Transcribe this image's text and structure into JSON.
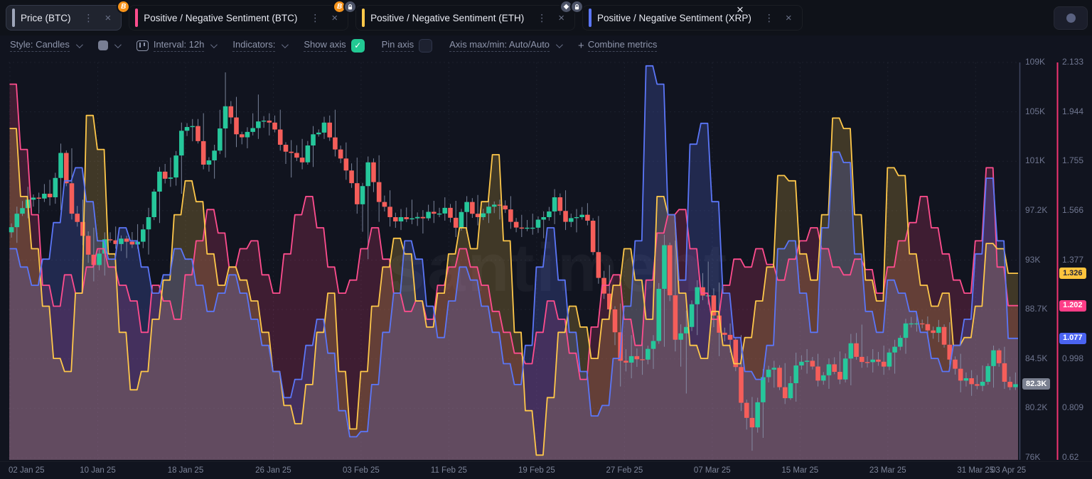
{
  "app": {
    "watermark": "santiment"
  },
  "tabbar": {
    "kebab_icon": "⋮",
    "close_icon": "×",
    "dismiss_icon": "×",
    "tabs": [
      {
        "label": "Price (BTC)",
        "series_color": "#9fa6ba",
        "active": true,
        "badges": [
          "btc"
        ]
      },
      {
        "label": "Positive / Negative Sentiment (BTC)",
        "series_color": "#ff4d8e",
        "active": false,
        "badges": [
          "btc",
          "lock"
        ]
      },
      {
        "label": "Positive / Negative Sentiment (ETH)",
        "series_color": "#ffc84a",
        "active": false,
        "badges": [
          "eth",
          "lock"
        ]
      },
      {
        "label": "Positive / Negative Sentiment (XRP)",
        "series_color": "#5b76f8",
        "active": false,
        "badges": []
      }
    ]
  },
  "toolbar": {
    "style_label": "Style: Candles",
    "interval_label": "Interval: 12h",
    "indicators_label": "Indicators:",
    "show_axis_label": "Show axis",
    "show_axis_checked": true,
    "pin_axis_label": "Pin axis",
    "pin_axis_checked": false,
    "axis_maxmin_label": "Axis max/min: Auto/Auto",
    "plus_icon": "+",
    "combine_metrics_label": "Combine metrics",
    "check_icon": "✓"
  },
  "chart_data": {
    "type": "candlestick_with_step_lines",
    "interval": "12h",
    "x_tick_labels": [
      "02 Jan 25",
      "10 Jan 25",
      "18 Jan 25",
      "26 Jan 25",
      "03 Feb 25",
      "11 Feb 25",
      "19 Feb 25",
      "27 Feb 25",
      "07 Mar 25",
      "15 Mar 25",
      "23 Mar 25",
      "31 Mar 25",
      "03 Apr 25"
    ],
    "x_tick_days": [
      0,
      8,
      16,
      24,
      32,
      40,
      48,
      56,
      64,
      72,
      80,
      88,
      91
    ],
    "price_axis": {
      "labels": [
        "109K",
        "105K",
        "101K",
        "97.2K",
        "93K",
        "88.7K",
        "84.5K",
        "80.2K",
        "76K"
      ],
      "min": 76,
      "max": 109.85,
      "line_color": "#3f4660",
      "last_badge": {
        "label": "82.3K",
        "value": 82.3,
        "bg": "#7a8090",
        "text": "#ffffff"
      }
    },
    "sentiment_axis": {
      "labels": [
        "2.133",
        "1.944",
        "1.755",
        "1.566",
        "1.377",
        "1.187",
        "0.998",
        "0.809",
        "0.62"
      ],
      "min": 0.62,
      "max": 2.133,
      "line_color": "#f23372"
    },
    "candles": {
      "name": "Price (BTC)",
      "up_color": "#26c79b",
      "down_color": "#f55e5a",
      "wick_color": "#8b95ae",
      "daily_ohlc": [
        [
          95.3,
          97.5,
          94.4,
          96.9
        ],
        [
          96.9,
          99.2,
          96.5,
          98.1
        ],
        [
          98.1,
          98.7,
          96.9,
          98.2
        ],
        [
          98.2,
          99.8,
          97.6,
          98.3
        ],
        [
          98.3,
          102.9,
          97.2,
          102.1
        ],
        [
          102.1,
          102.5,
          96.4,
          96.9
        ],
        [
          96.9,
          98.1,
          94.2,
          95.0
        ],
        [
          95.0,
          95.7,
          91.1,
          92.5
        ],
        [
          92.5,
          95.3,
          91.6,
          94.7
        ],
        [
          94.7,
          95.8,
          93.9,
          94.3
        ],
        [
          94.3,
          95.0,
          93.1,
          94.5
        ],
        [
          94.5,
          96.0,
          93.9,
          94.5
        ],
        [
          94.5,
          97.4,
          93.4,
          96.6
        ],
        [
          96.6,
          100.9,
          96.1,
          100.5
        ],
        [
          100.5,
          101.7,
          99.2,
          100.0
        ],
        [
          100.0,
          104.7,
          98.6,
          104.0
        ],
        [
          104.0,
          105.0,
          103.1,
          104.4
        ],
        [
          104.4,
          105.5,
          100.7,
          101.1
        ],
        [
          101.1,
          102.8,
          99.9,
          102.3
        ],
        [
          102.3,
          109.0,
          101.7,
          106.1
        ],
        [
          106.1,
          106.9,
          102.6,
          103.7
        ],
        [
          103.7,
          104.3,
          102.5,
          103.9
        ],
        [
          103.9,
          107.1,
          103.3,
          104.8
        ],
        [
          104.8,
          105.5,
          103.6,
          104.7
        ],
        [
          104.7,
          105.8,
          102.3,
          102.8
        ],
        [
          102.8,
          103.2,
          100.0,
          102.1
        ],
        [
          102.1,
          103.3,
          100.7,
          101.3
        ],
        [
          101.3,
          104.4,
          100.9,
          103.7
        ],
        [
          103.7,
          105.2,
          103.3,
          104.7
        ],
        [
          104.7,
          105.8,
          101.8,
          102.4
        ],
        [
          102.4,
          103.0,
          99.8,
          100.6
        ],
        [
          100.6,
          101.7,
          96.9,
          97.7
        ],
        [
          97.7,
          101.8,
          93.0,
          101.3
        ],
        [
          101.3,
          101.9,
          96.2,
          97.9
        ],
        [
          97.9,
          98.9,
          95.8,
          96.6
        ],
        [
          96.6,
          97.3,
          95.5,
          96.6
        ],
        [
          96.6,
          98.1,
          96.0,
          96.5
        ],
        [
          96.5,
          97.2,
          95.2,
          96.5
        ],
        [
          96.5,
          98.0,
          96.1,
          96.9
        ],
        [
          96.9,
          98.3,
          96.3,
          97.4
        ],
        [
          97.4,
          98.0,
          94.9,
          95.7
        ],
        [
          95.7,
          98.4,
          95.2,
          97.9
        ],
        [
          97.9,
          98.5,
          95.9,
          96.6
        ],
        [
          96.6,
          98.2,
          96.1,
          97.5
        ],
        [
          97.5,
          98.1,
          96.4,
          97.6
        ],
        [
          97.6,
          98.4,
          95.6,
          96.2
        ],
        [
          96.2,
          96.8,
          94.9,
          95.7
        ],
        [
          95.7,
          96.9,
          95.1,
          95.7
        ],
        [
          95.7,
          97.1,
          94.8,
          96.6
        ],
        [
          96.6,
          99.0,
          96.0,
          98.3
        ],
        [
          98.3,
          98.9,
          95.5,
          96.2
        ],
        [
          96.2,
          97.3,
          95.3,
          96.6
        ],
        [
          96.6,
          97.8,
          95.9,
          96.3
        ],
        [
          96.3,
          96.7,
          90.9,
          91.4
        ],
        [
          91.4,
          92.5,
          87.8,
          88.7
        ],
        [
          88.7,
          89.2,
          82.1,
          84.3
        ],
        [
          84.3,
          86.5,
          82.8,
          84.7
        ],
        [
          84.7,
          85.9,
          83.1,
          84.4
        ],
        [
          84.4,
          86.5,
          83.6,
          86.0
        ],
        [
          86.0,
          95.1,
          85.5,
          94.2
        ],
        [
          94.2,
          94.6,
          85.1,
          86.1
        ],
        [
          86.1,
          88.6,
          81.5,
          87.2
        ],
        [
          87.2,
          91.2,
          86.5,
          90.6
        ],
        [
          90.6,
          92.8,
          89.1,
          89.9
        ],
        [
          89.9,
          91.0,
          84.7,
          86.7
        ],
        [
          86.7,
          87.5,
          85.0,
          86.1
        ],
        [
          86.1,
          86.5,
          80.0,
          80.7
        ],
        [
          80.7,
          81.2,
          76.6,
          78.6
        ],
        [
          78.6,
          83.6,
          77.7,
          82.9
        ],
        [
          82.9,
          84.3,
          82.0,
          83.7
        ],
        [
          83.7,
          84.1,
          80.6,
          81.1
        ],
        [
          81.1,
          85.0,
          80.8,
          83.9
        ],
        [
          83.9,
          85.3,
          83.2,
          84.3
        ],
        [
          84.3,
          84.9,
          82.1,
          82.6
        ],
        [
          82.6,
          84.5,
          81.9,
          84.0
        ],
        [
          84.0,
          85.1,
          82.3,
          82.7
        ],
        [
          82.7,
          86.6,
          82.2,
          85.8
        ],
        [
          85.8,
          87.4,
          83.7,
          84.2
        ],
        [
          84.2,
          85.3,
          83.3,
          84.4
        ],
        [
          84.4,
          85.6,
          83.1,
          83.8
        ],
        [
          83.8,
          86.1,
          83.2,
          85.5
        ],
        [
          85.5,
          87.9,
          84.9,
          87.5
        ],
        [
          87.5,
          88.5,
          86.8,
          87.5
        ],
        [
          87.5,
          88.1,
          86.2,
          86.9
        ],
        [
          86.9,
          87.8,
          85.9,
          87.2
        ],
        [
          87.2,
          87.6,
          83.9,
          84.4
        ],
        [
          84.4,
          84.9,
          81.6,
          82.6
        ],
        [
          82.6,
          83.5,
          81.3,
          82.3
        ],
        [
          82.3,
          83.9,
          81.7,
          82.5
        ],
        [
          82.5,
          85.6,
          82.0,
          85.2
        ],
        [
          85.2,
          85.5,
          81.9,
          82.5
        ],
        [
          82.5,
          83.3,
          81.8,
          82.3
        ]
      ]
    },
    "series": [
      {
        "name": "Positive / Negative Sentiment (BTC)",
        "asset": "BTC",
        "color": "#ff4d8e",
        "fill": "rgba(243,63,132,0.20)",
        "last_badge": {
          "label": "1.202",
          "value": 1.202,
          "bg": "#ff3d87",
          "text": "#ffffff"
        },
        "values": [
          2.05,
          1.8,
          1.55,
          1.28,
          1.2,
          1.32,
          1.25,
          1.35,
          1.42,
          1.35,
          1.28,
          1.22,
          1.1,
          1.28,
          1.22,
          1.15,
          1.32,
          1.45,
          1.57,
          1.48,
          1.35,
          1.42,
          1.45,
          1.32,
          1.25,
          1.4,
          1.55,
          1.62,
          1.5,
          1.35,
          1.25,
          1.3,
          1.42,
          1.5,
          1.38,
          1.25,
          1.18,
          1.22,
          1.15,
          1.28,
          1.35,
          1.42,
          1.35,
          1.28,
          1.18,
          1.1,
          1.02,
          0.98,
          1.1,
          1.22,
          1.15,
          1.02,
          0.92,
          1.12,
          1.28,
          1.32,
          1.15,
          1.05,
          1.3,
          1.48,
          1.55,
          1.57,
          1.42,
          1.25,
          1.15,
          1.28,
          1.38,
          1.35,
          1.42,
          1.36,
          1.3,
          1.38,
          1.45,
          1.5,
          1.42,
          1.35,
          1.32,
          1.38,
          1.34,
          1.25,
          1.35,
          1.45,
          1.52,
          1.62,
          1.5,
          1.4,
          1.3,
          1.25,
          1.45,
          1.73,
          1.35,
          1.202
        ]
      },
      {
        "name": "Positive / Negative Sentiment (ETH)",
        "asset": "ETH",
        "color": "#ffc84a",
        "fill": "rgba(255,200,74,0.20)",
        "last_badge": {
          "label": "1.326",
          "value": 1.326,
          "bg": "#ffc43d",
          "text": "#23263a"
        },
        "values": [
          1.88,
          1.62,
          1.42,
          1.2,
          1.0,
          0.95,
          1.25,
          1.93,
          1.8,
          1.4,
          1.1,
          0.88,
          0.95,
          1.15,
          1.3,
          1.55,
          1.68,
          1.6,
          1.4,
          1.28,
          1.35,
          1.3,
          1.22,
          1.1,
          0.95,
          0.82,
          0.75,
          0.9,
          1.1,
          1.25,
          0.95,
          0.73,
          0.95,
          1.2,
          1.35,
          1.46,
          1.4,
          1.22,
          1.12,
          1.25,
          1.4,
          1.5,
          1.42,
          1.6,
          1.78,
          1.45,
          1.1,
          0.8,
          0.63,
          0.85,
          1.1,
          1.2,
          1.12,
          1.0,
          1.15,
          1.28,
          1.42,
          1.3,
          1.15,
          1.62,
          1.55,
          1.25,
          1.05,
          1.0,
          1.18,
          1.05,
          0.98,
          1.08,
          1.22,
          1.35,
          1.7,
          1.68,
          1.4,
          1.3,
          1.55,
          1.92,
          1.88,
          1.55,
          1.3,
          1.22,
          1.73,
          1.7,
          1.4,
          1.28,
          1.2,
          1.25,
          1.05,
          1.08,
          1.2,
          1.44,
          1.42,
          1.326
        ]
      },
      {
        "name": "Positive / Negative Sentiment (XRP)",
        "asset": "XRP",
        "color": "#5b76f8",
        "fill": "rgba(91,118,248,0.22)",
        "last_badge": {
          "label": "1.077",
          "value": 1.077,
          "bg": "#4a63f0",
          "text": "#ffffff"
        },
        "values": [
          1.42,
          1.35,
          1.28,
          1.38,
          1.52,
          1.68,
          1.73,
          1.6,
          1.45,
          1.38,
          1.5,
          1.45,
          1.35,
          1.25,
          1.32,
          1.42,
          1.38,
          1.28,
          1.18,
          1.25,
          1.32,
          1.25,
          1.15,
          1.05,
          0.95,
          0.85,
          0.92,
          1.05,
          1.15,
          1.02,
          0.8,
          0.7,
          0.72,
          0.9,
          1.1,
          1.25,
          1.45,
          1.38,
          1.2,
          1.08,
          1.22,
          1.35,
          1.3,
          1.2,
          1.1,
          0.98,
          0.9,
          1.05,
          1.35,
          1.5,
          1.3,
          1.1,
          0.95,
          0.78,
          0.82,
          1.0,
          1.2,
          1.45,
          2.12,
          2.05,
          1.55,
          1.3,
          1.82,
          1.9,
          1.6,
          1.25,
          1.08,
          0.95,
          0.92,
          1.05,
          1.42,
          1.45,
          1.25,
          1.1,
          1.5,
          1.79,
          1.75,
          1.4,
          1.18,
          1.1,
          1.3,
          1.25,
          1.18,
          1.1,
          1.0,
          0.95,
          1.05,
          1.15,
          1.4,
          1.69,
          1.45,
          1.077
        ]
      }
    ]
  }
}
